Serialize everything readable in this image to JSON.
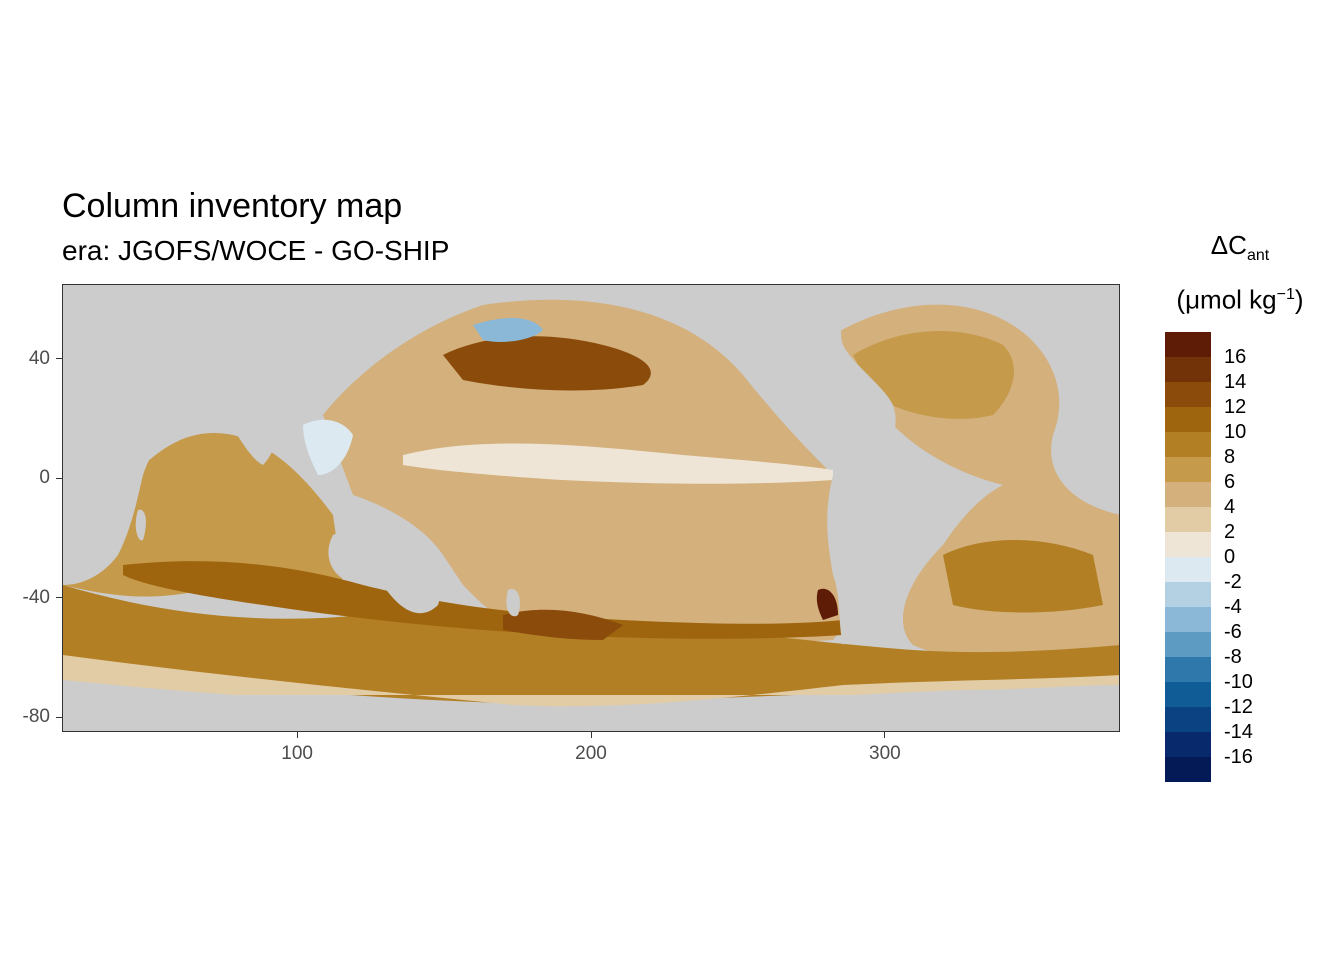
{
  "chart": {
    "title": "Column inventory map",
    "subtitle": "era: JGOFS/WOCE - GO-SHIP",
    "legend_title_main": "ΔC",
    "legend_title_sub": "ant",
    "legend_unit_prefix": "(μmol kg",
    "legend_unit_sup": "−1",
    "legend_unit_suffix": ")"
  },
  "chart_data": {
    "type": "heatmap",
    "xlabel": "",
    "ylabel": "",
    "xlim": [
      20,
      380
    ],
    "ylim": [
      -85,
      65
    ],
    "x_ticks": [
      "100",
      "200",
      "300"
    ],
    "y_ticks": [
      "40",
      "0",
      "-40",
      "-80"
    ],
    "legend_labels": [
      "16",
      "14",
      "12",
      "10",
      "8",
      "6",
      "4",
      "2",
      "0",
      "-2",
      "-4",
      "-6",
      "-8",
      "-10",
      "-12",
      "-14",
      "-16"
    ],
    "legend_colors": [
      "#5e1c06",
      "#733309",
      "#8b4b0b",
      "#9f650e",
      "#b27f24",
      "#c59a4b",
      "#d3b07c",
      "#e2cca5",
      "#efe5d6",
      "#dde9f1",
      "#b4d0e3",
      "#8ab8d6",
      "#5e9bc2",
      "#2f78ab",
      "#105c96",
      "#0b4282",
      "#082a6d",
      "#041a57"
    ],
    "land_color": "#cccccc",
    "missing_color": "#ffffff"
  }
}
